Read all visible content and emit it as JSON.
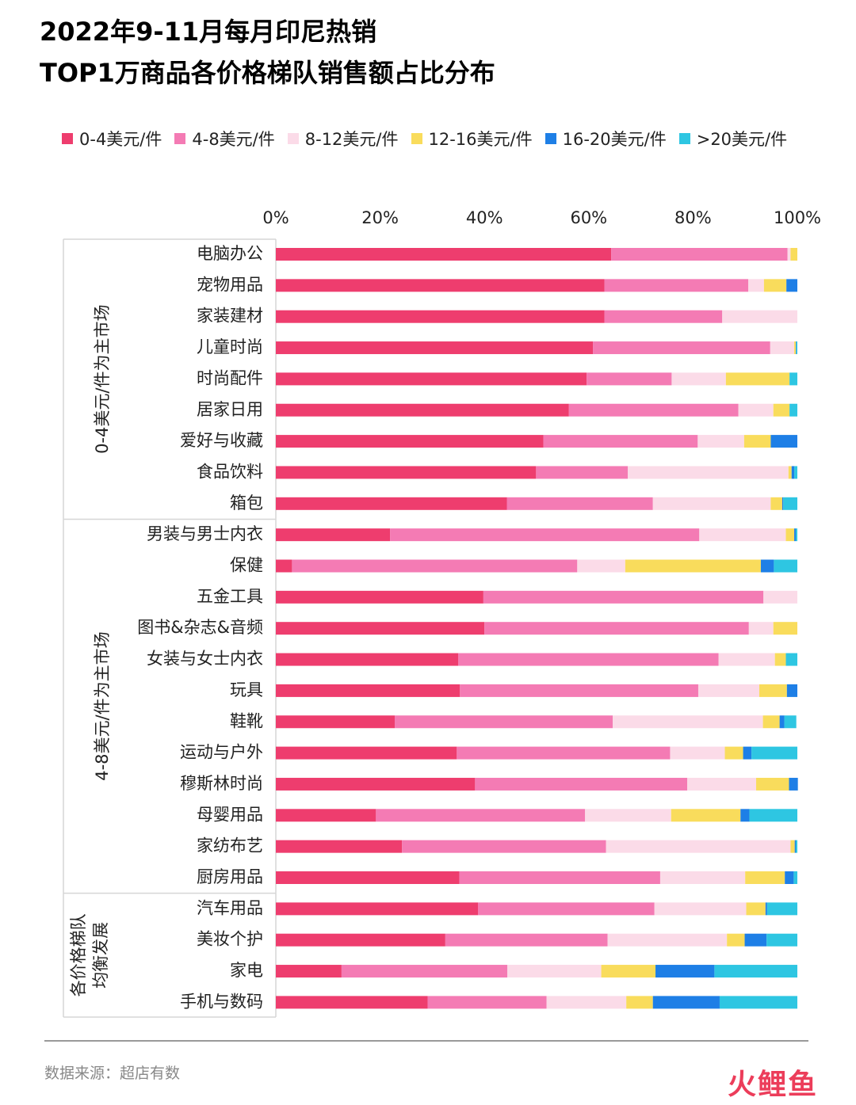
{
  "title_line1": "2022年9-11月每月印尼热销",
  "title_line2": "TOP1万商品各价格梯队销售额占比分布",
  "source": "数据来源：超店有数",
  "brand": "火鲤鱼",
  "chart_data": {
    "type": "bar",
    "orientation": "horizontal",
    "stacked": true,
    "percent": true,
    "xlim": [
      0,
      100
    ],
    "x_ticks": [
      "0%",
      "20%",
      "40%",
      "60%",
      "80%",
      "100%"
    ],
    "x_tick_values": [
      0,
      20,
      40,
      60,
      80,
      100
    ],
    "legend_position": "top",
    "series": [
      {
        "name": "0-4美元/件",
        "color": "#ee3d6e",
        "values": [
          64.3,
          63.0,
          63.0,
          60.8,
          59.6,
          56.2,
          51.3,
          49.9,
          44.3,
          21.9,
          3.1,
          39.8,
          40.0,
          35.0,
          35.3,
          22.8,
          34.7,
          38.2,
          19.2,
          24.2,
          35.2,
          38.8,
          32.5,
          12.6,
          29.1
        ]
      },
      {
        "name": "4-8美元/件",
        "color": "#f47bb4",
        "values": [
          33.8,
          27.6,
          22.6,
          34.0,
          16.3,
          32.5,
          29.6,
          17.6,
          28.0,
          59.3,
          54.7,
          53.7,
          50.7,
          49.9,
          45.7,
          41.8,
          40.9,
          40.7,
          40.1,
          39.1,
          38.5,
          33.8,
          31.1,
          31.8,
          22.8
        ]
      },
      {
        "name": "8-12美元/件",
        "color": "#fbdbe8",
        "values": [
          0.6,
          3.0,
          14.4,
          4.6,
          10.4,
          6.7,
          8.9,
          30.8,
          22.6,
          16.6,
          9.2,
          6.5,
          4.7,
          10.8,
          11.7,
          28.8,
          10.5,
          13.2,
          16.5,
          35.4,
          16.3,
          17.6,
          22.9,
          18.0,
          15.3
        ]
      },
      {
        "name": "12-16美元/件",
        "color": "#f9dc5c",
        "values": [
          1.3,
          4.3,
          0,
          0.3,
          12.2,
          3.1,
          5.1,
          0.6,
          2.2,
          1.6,
          26.0,
          0,
          4.6,
          2.1,
          5.3,
          3.2,
          3.5,
          6.3,
          13.3,
          0.8,
          7.6,
          3.7,
          3.4,
          10.4,
          5.1
        ]
      },
      {
        "name": "16-20美元/件",
        "color": "#1e7fe6",
        "values": [
          0,
          2.1,
          0,
          0.1,
          0,
          0,
          5.1,
          0.5,
          0.2,
          0.3,
          2.5,
          0,
          0,
          0,
          2.0,
          0.9,
          1.6,
          1.7,
          1.7,
          0.2,
          1.7,
          0.3,
          4.2,
          11.3,
          12.8
        ]
      },
      {
        "name": ">20美元/件",
        "color": "#2ec6e2",
        "values": [
          0,
          0,
          0,
          0.2,
          1.5,
          1.5,
          0,
          0.6,
          2.7,
          0.3,
          4.5,
          0,
          0,
          2.2,
          0,
          2.3,
          8.8,
          0,
          9.2,
          0.3,
          0.7,
          5.8,
          5.9,
          15.9,
          14.9
        ]
      }
    ],
    "categories": [
      "电脑办公",
      "宠物用品",
      "家装建材",
      "儿童时尚",
      "时尚配件",
      "居家日用",
      "爱好与收藏",
      "食品饮料",
      "箱包",
      "男装与男士内衣",
      "保健",
      "五金工具",
      "图书&杂志&音频",
      "女装与女士内衣",
      "玩具",
      "鞋靴",
      "运动与户外",
      "穆斯林时尚",
      "母婴用品",
      "家纺布艺",
      "厨房用品",
      "汽车用品",
      "美妆个护",
      "家电",
      "手机与数码"
    ],
    "groups": [
      {
        "label": "0-4美元/件为主市场",
        "start": 0,
        "end": 8
      },
      {
        "label": "4-8美元/件为主市场",
        "start": 9,
        "end": 20
      },
      {
        "label_lines": [
          "各价格梯队",
          "均衡发展"
        ],
        "start": 21,
        "end": 24
      }
    ]
  }
}
